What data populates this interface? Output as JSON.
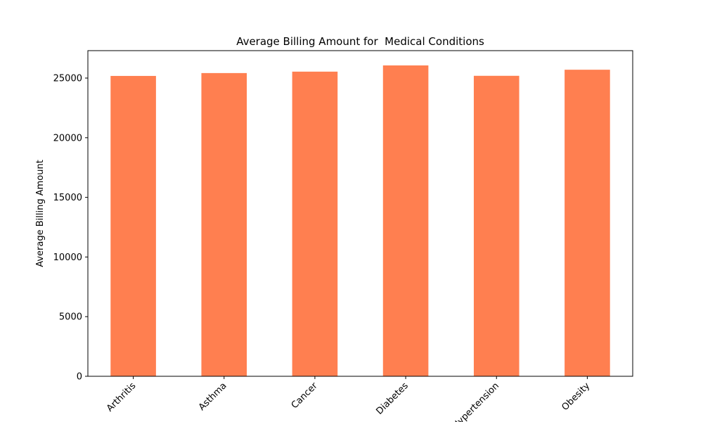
{
  "chart_data": {
    "type": "bar",
    "title": "Average Billing Amount for  Medical Conditions",
    "xlabel": "",
    "ylabel": "Average Billing Amount",
    "categories": [
      "Arthritis",
      "Asthma",
      "Cancer",
      "Diabetes",
      "Hypertension",
      "Obesity"
    ],
    "values": [
      25180,
      25420,
      25540,
      26060,
      25190,
      25700
    ],
    "ylim": [
      0,
      27300
    ],
    "yticks": [
      0,
      5000,
      10000,
      15000,
      20000,
      25000
    ],
    "grid": false,
    "legend": "none",
    "bar_color": "#ff7f50"
  }
}
